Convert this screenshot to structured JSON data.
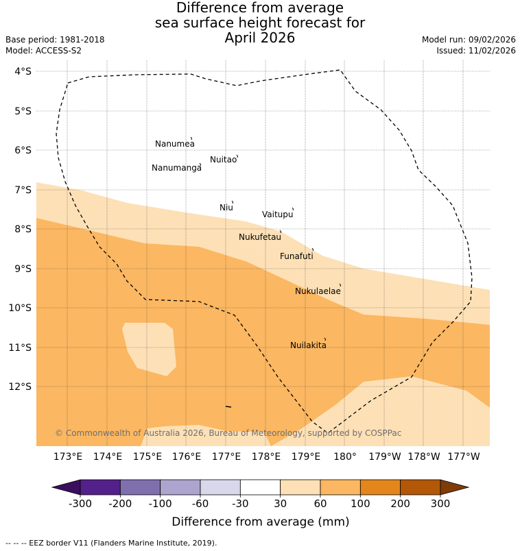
{
  "title_lines": [
    "Difference from average",
    "sea surface height forecast for",
    "April 2026"
  ],
  "meta": {
    "base_period": "Base period: 1981-2018",
    "model": "Model: ACCESS-S2",
    "model_run": "Model run: 09/02/2026",
    "issued": "Issued: 11/02/2026"
  },
  "map": {
    "lat_labels": [
      "4°S",
      "5°S",
      "6°S",
      "7°S",
      "8°S",
      "9°S",
      "10°S",
      "11°S",
      "12°S"
    ],
    "lon_labels": [
      "173°E",
      "174°E",
      "175°E",
      "176°E",
      "177°E",
      "178°E",
      "179°E",
      "180°",
      "179°W",
      "178°W",
      "177°W"
    ],
    "islands": [
      {
        "name": "Nanumea"
      },
      {
        "name": "Nuitao"
      },
      {
        "name": "Nanumanga"
      },
      {
        "name": "Niu"
      },
      {
        "name": "Vaitupu"
      },
      {
        "name": "Nukufetau"
      },
      {
        "name": "Funafuti"
      },
      {
        "name": "Nukulaelae"
      },
      {
        "name": "Nuilakita"
      }
    ],
    "copyright": "© Commonwealth of Australia 2026, Bureau of Meteorology, supported by COSPPac"
  },
  "colorbar": {
    "ticks": [
      "-300",
      "-200",
      "-100",
      "-60",
      "-30",
      "30",
      "60",
      "100",
      "200",
      "300"
    ],
    "colors": [
      "#3b0f5e",
      "#54208a",
      "#7f70ad",
      "#aea5cf",
      "#d8d8ec",
      "#ffffff",
      "#fde0b6",
      "#fbb761",
      "#e3861b",
      "#b35806",
      "#7f3b08"
    ],
    "label": "Difference from average (mm)"
  },
  "footnote": "-- -- -- EEZ border V11 (Flanders Marine Institute, 2019)."
}
